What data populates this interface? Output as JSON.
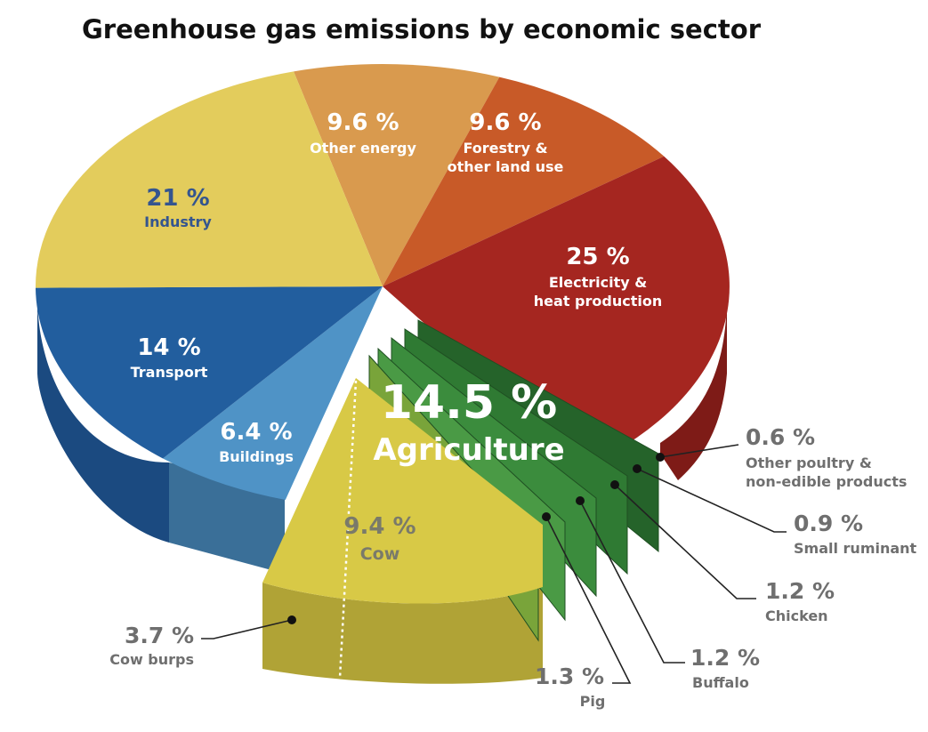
{
  "chart_data": {
    "type": "pie",
    "title": "Greenhouse gas emissions by economic sector",
    "slices": [
      {
        "label": "Other energy",
        "pct_label": "9.6 %",
        "value": 9.6,
        "color": "#d99a4e"
      },
      {
        "label": "Forestry &\nother land use",
        "pct_label": "9.6 %",
        "value": 9.6,
        "color": "#c85a28"
      },
      {
        "label": "Electricity &\nheat production",
        "pct_label": "25 %",
        "value": 25,
        "color": "#a52620"
      },
      {
        "label": "Agriculture",
        "pct_label": "14.5 %",
        "value": 14.5,
        "color": "#3e8a3a"
      },
      {
        "label": "Buildings",
        "pct_label": "6.4 %",
        "value": 6.4,
        "color": "#4f93c6"
      },
      {
        "label": "Transport",
        "pct_label": "14 %",
        "value": 14,
        "color": "#225e9e"
      },
      {
        "label": "Industry",
        "pct_label": "21 %",
        "value": 21,
        "color": "#e3cc5c"
      }
    ],
    "agriculture_breakdown": [
      {
        "label": "Cow",
        "pct_label": "9.4 %",
        "value": 9.4,
        "color": "#d8c946"
      },
      {
        "label": "Pig",
        "pct_label": "1.3 %",
        "value": 1.3,
        "color": "#79a43a"
      },
      {
        "label": "Buffalo",
        "pct_label": "1.2 %",
        "value": 1.2,
        "color": "#4a9a45"
      },
      {
        "label": "Chicken",
        "pct_label": "1.2 %",
        "value": 1.2,
        "color": "#3b8c3d"
      },
      {
        "label": "Small ruminant",
        "pct_label": "0.9 %",
        "value": 0.9,
        "color": "#2f7a33"
      },
      {
        "label": "Other poultry &\nnon-edible products",
        "pct_label": "0.6 %",
        "value": 0.6,
        "color": "#25632a"
      }
    ],
    "cow_breakdown": [
      {
        "label": "Cow burps",
        "pct_label": "3.7 %",
        "value": 3.7
      }
    ]
  }
}
